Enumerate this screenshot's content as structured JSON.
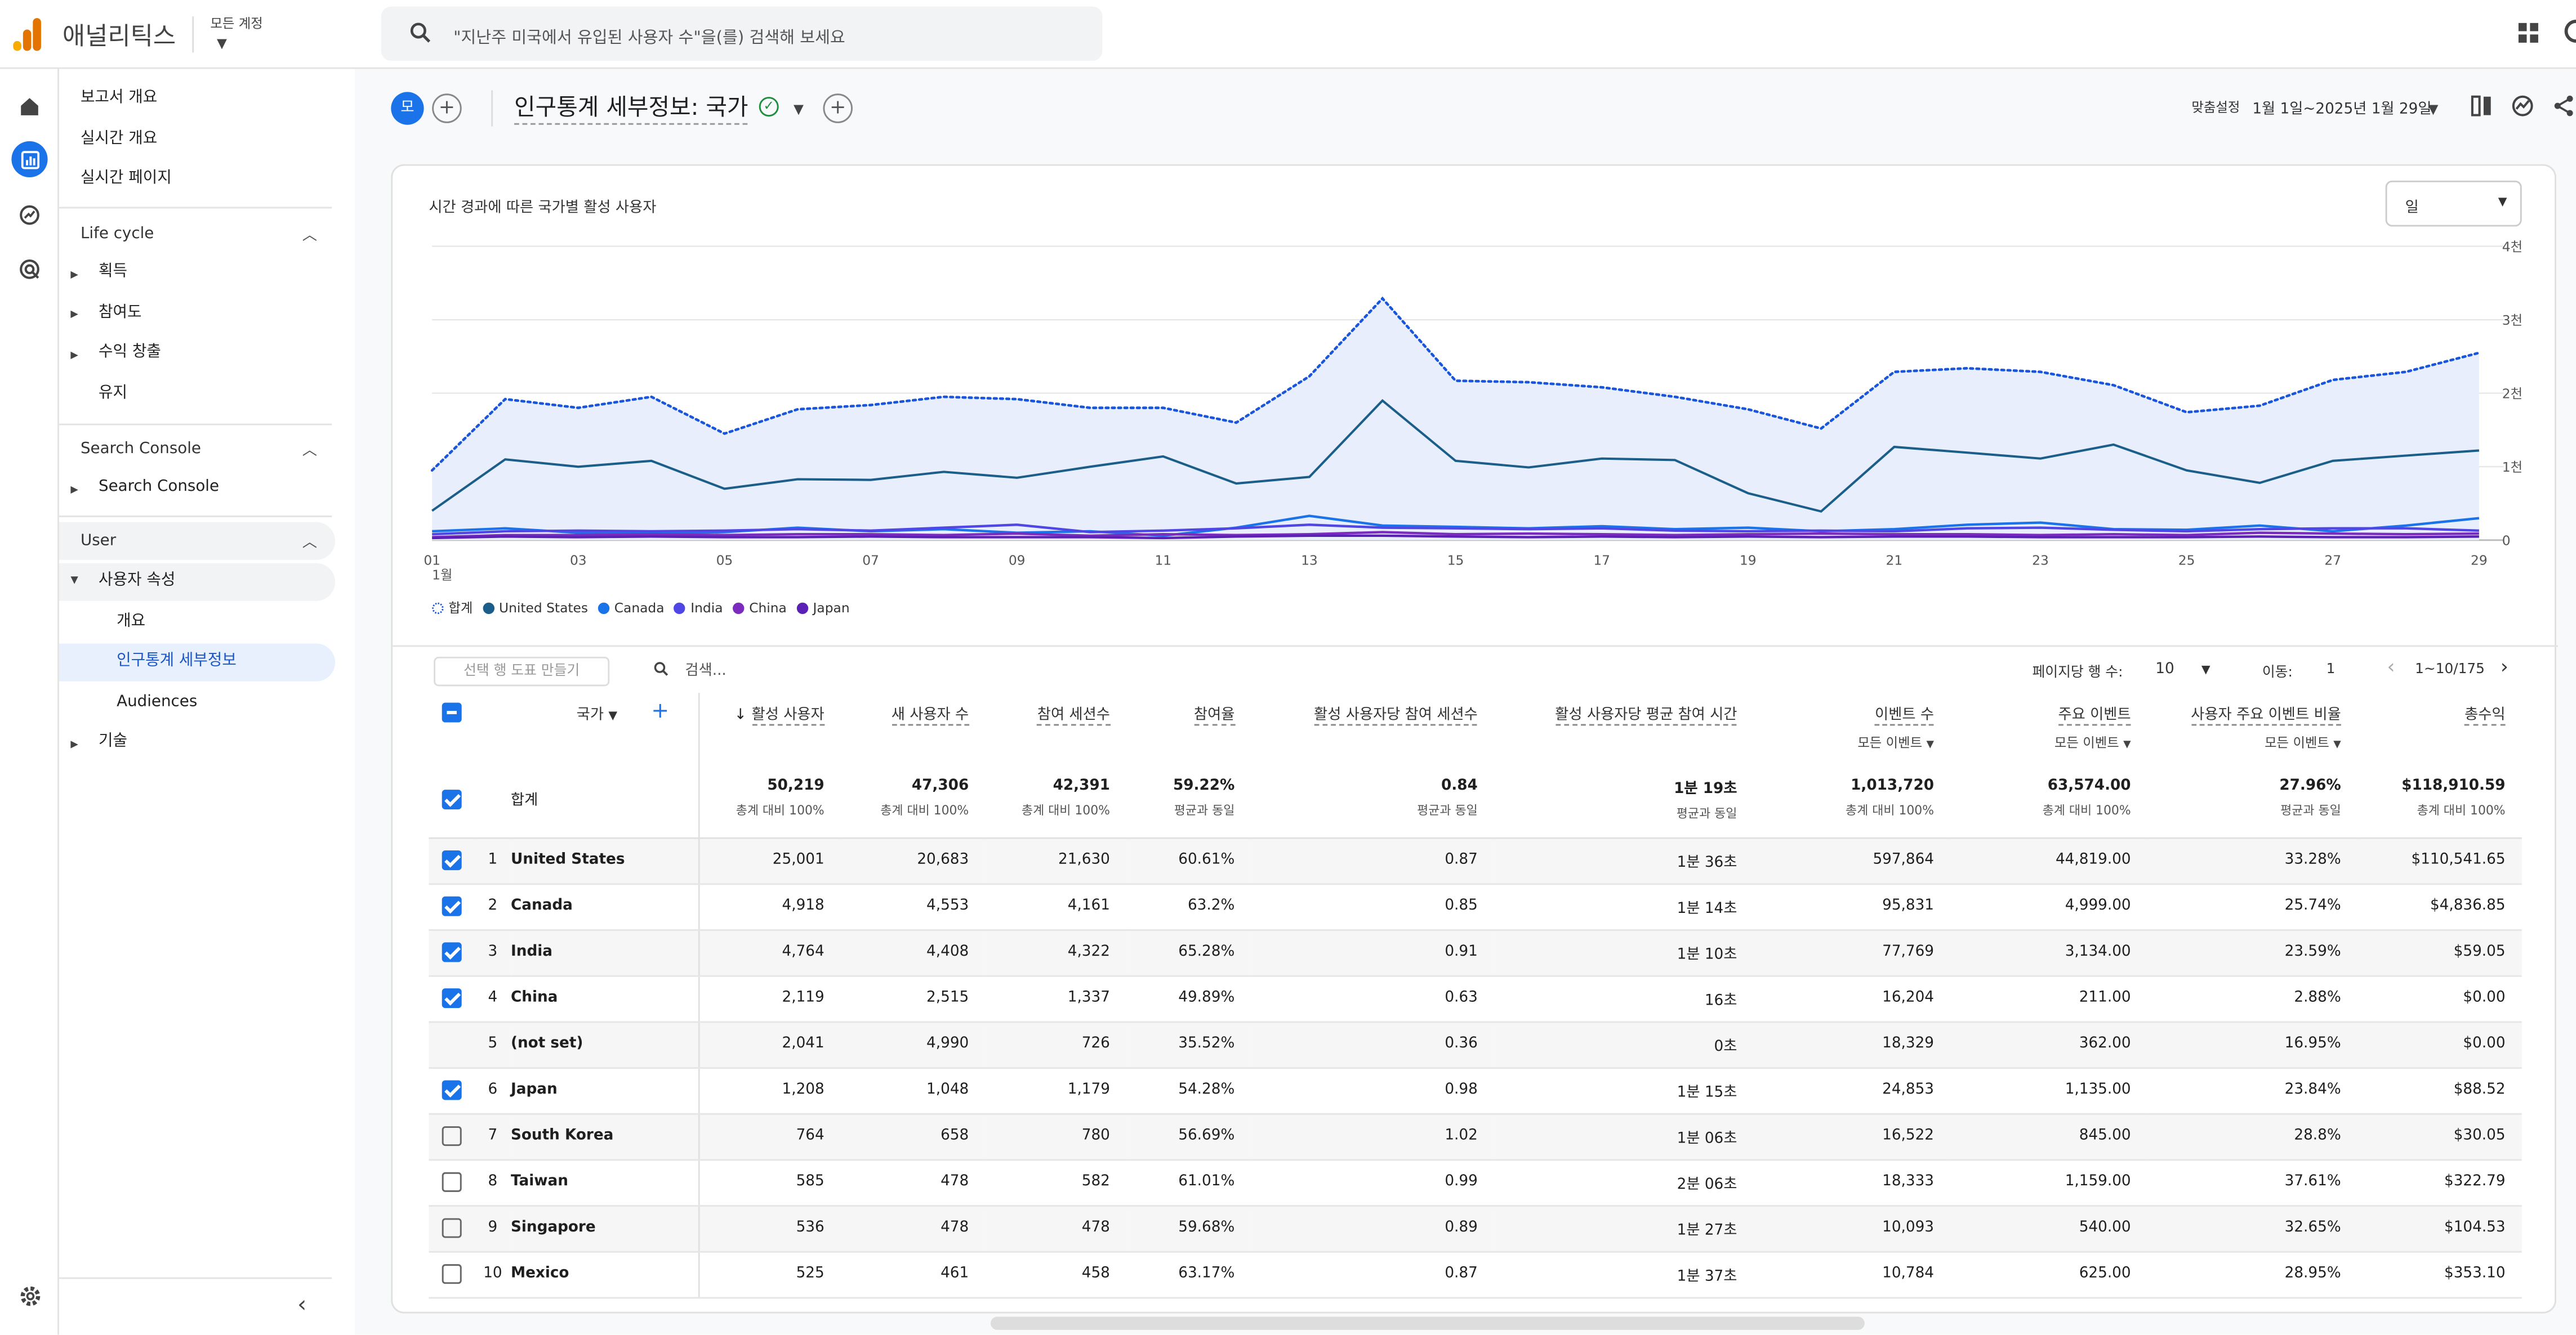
{
  "app": {
    "title": "애널리틱스",
    "account_label": "모든 계정",
    "search_placeholder": "\"지난주 미국에서 유입된 사용자 수\"을(를) 검색해 보세요"
  },
  "colors": {
    "accent": "#1a73e8",
    "logo": [
      "#f9ab00",
      "#e37400",
      "#e37400"
    ]
  },
  "rail": {
    "icons": [
      "home-icon",
      "reports-icon",
      "explore-icon",
      "advertising-icon",
      "settings-icon"
    ]
  },
  "sidebar": {
    "top_items": [
      "보고서 개요",
      "실시간 개요",
      "실시간 페이지"
    ],
    "lifecycle": {
      "title": "Life cycle",
      "items": [
        "획득",
        "참여도",
        "수익 창출",
        "유지"
      ]
    },
    "search_console": {
      "title": "Search Console",
      "items": [
        "Search Console"
      ]
    },
    "user": {
      "title": "User",
      "group": "사용자 속성",
      "sub": [
        "개요",
        "인구통계 세부정보",
        "Audiences"
      ],
      "tech": "기술"
    }
  },
  "toolbar": {
    "chip": "모",
    "page_title": "인구통계 세부정보: 국가",
    "custom_label": "맞춤설정",
    "date_range": "1월 1일~2025년 1월 29일"
  },
  "chart_card": {
    "title": "시간 경과에 따른 국가별 활성 사용자",
    "granularity": "일"
  },
  "chart_data": {
    "type": "line",
    "x": [
      "01",
      "02",
      "03",
      "04",
      "05",
      "06",
      "07",
      "08",
      "09",
      "10",
      "11",
      "12",
      "13",
      "14",
      "15",
      "16",
      "17",
      "18",
      "19",
      "20",
      "21",
      "22",
      "23",
      "24",
      "25",
      "26",
      "27",
      "28",
      "29"
    ],
    "x_tick_labels": [
      "01",
      "03",
      "05",
      "07",
      "09",
      "11",
      "13",
      "15",
      "17",
      "19",
      "21",
      "23",
      "25",
      "27",
      "29"
    ],
    "x_sub_label": "1월",
    "y_tick_labels": [
      "0",
      "1천",
      "2천",
      "3천",
      "4천"
    ],
    "ylim": [
      0,
      4000
    ],
    "grid": true,
    "legend_position": "bottom-left",
    "series": [
      {
        "name": "합계",
        "color": "#1a56db",
        "style": "dotted-area",
        "values": [
          950,
          1920,
          1800,
          1950,
          1450,
          1780,
          1840,
          1950,
          1920,
          1800,
          1800,
          1600,
          2230,
          3290,
          2170,
          2150,
          2080,
          1950,
          1780,
          1520,
          2290,
          2340,
          2290,
          2110,
          1740,
          1830,
          2180,
          2290,
          2550
        ]
      },
      {
        "name": "United States",
        "color": "#1b5e8a",
        "style": "solid",
        "values": [
          400,
          1100,
          1000,
          1080,
          700,
          830,
          820,
          930,
          850,
          1000,
          1140,
          770,
          860,
          1900,
          1080,
          990,
          1110,
          1090,
          640,
          390,
          1270,
          1190,
          1110,
          1300,
          950,
          780,
          1080,
          1150,
          1220
        ]
      },
      {
        "name": "Canada",
        "color": "#1a73e8",
        "style": "solid",
        "values": [
          120,
          160,
          100,
          90,
          110,
          170,
          120,
          150,
          100,
          120,
          60,
          170,
          330,
          200,
          180,
          160,
          190,
          150,
          170,
          120,
          150,
          210,
          240,
          150,
          140,
          200,
          120,
          200,
          300
        ]
      },
      {
        "name": "India",
        "color": "#4f46e5",
        "style": "solid",
        "values": [
          80,
          120,
          130,
          120,
          130,
          150,
          130,
          170,
          210,
          110,
          130,
          160,
          210,
          170,
          160,
          150,
          160,
          130,
          120,
          130,
          120,
          160,
          170,
          140,
          120,
          150,
          160,
          160,
          130
        ]
      },
      {
        "name": "China",
        "color": "#7b2cbf",
        "style": "solid",
        "values": [
          40,
          70,
          70,
          80,
          70,
          80,
          80,
          70,
          90,
          60,
          80,
          70,
          80,
          110,
          80,
          90,
          80,
          70,
          80,
          90,
          80,
          80,
          70,
          80,
          70,
          100,
          90,
          80,
          90
        ]
      },
      {
        "name": "Japan",
        "color": "#5b21b6",
        "style": "solid",
        "values": [
          30,
          50,
          40,
          50,
          40,
          40,
          50,
          40,
          40,
          40,
          30,
          50,
          60,
          60,
          50,
          40,
          50,
          40,
          50,
          40,
          50,
          50,
          40,
          40,
          40,
          50,
          40,
          40,
          50
        ]
      }
    ]
  },
  "table_tools": {
    "rows_btn": "선택 행 도표 만들기",
    "search_placeholder": "검색...",
    "rows_per_page_label": "페이지당 행 수:",
    "rows_per_page": "10",
    "goto_label": "이동:",
    "goto_value": "1",
    "range": "1~10/175"
  },
  "table": {
    "dim_header": "국가",
    "columns": [
      {
        "label": "활성 사용자",
        "sorted": true
      },
      {
        "label": "새 사용자 수"
      },
      {
        "label": "참여 세션수"
      },
      {
        "label": "참여율"
      },
      {
        "label": "활성 사용자당 참여 세션수"
      },
      {
        "label": "활성 사용자당 평균 참여 시간"
      },
      {
        "label": "이벤트 수",
        "sub": "모든 이벤트"
      },
      {
        "label": "주요 이벤트",
        "sub": "모든 이벤트"
      },
      {
        "label": "사용자 주요 이벤트 비율",
        "sub": "모든 이벤트"
      },
      {
        "label": "총수익"
      }
    ],
    "total": {
      "label": "합계",
      "values": [
        "50,219",
        "47,306",
        "42,391",
        "59.22%",
        "0.84",
        "1분 19초",
        "1,013,720",
        "63,574.00",
        "27.96%",
        "$118,910.59"
      ],
      "subs": [
        "총계 대비 100%",
        "총계 대비 100%",
        "총계 대비 100%",
        "평균과 동일",
        "평균과 동일",
        "평균과 동일",
        "총계 대비 100%",
        "총계 대비 100%",
        "평균과 동일",
        "총계 대비 100%"
      ]
    },
    "rows": [
      {
        "n": "1",
        "country": "United States",
        "checked": true,
        "values": [
          "25,001",
          "20,683",
          "21,630",
          "60.61%",
          "0.87",
          "1분 36초",
          "597,864",
          "44,819.00",
          "33.28%",
          "$110,541.65"
        ]
      },
      {
        "n": "2",
        "country": "Canada",
        "checked": true,
        "values": [
          "4,918",
          "4,553",
          "4,161",
          "63.2%",
          "0.85",
          "1분 14초",
          "95,831",
          "4,999.00",
          "25.74%",
          "$4,836.85"
        ]
      },
      {
        "n": "3",
        "country": "India",
        "checked": true,
        "values": [
          "4,764",
          "4,408",
          "4,322",
          "65.28%",
          "0.91",
          "1분 10초",
          "77,769",
          "3,134.00",
          "23.59%",
          "$59.05"
        ]
      },
      {
        "n": "4",
        "country": "China",
        "checked": true,
        "values": [
          "2,119",
          "2,515",
          "1,337",
          "49.89%",
          "0.63",
          "16초",
          "16,204",
          "211.00",
          "2.88%",
          "$0.00"
        ]
      },
      {
        "n": "5",
        "country": "(not set)",
        "checked": null,
        "values": [
          "2,041",
          "4,990",
          "726",
          "35.52%",
          "0.36",
          "0초",
          "18,329",
          "362.00",
          "16.95%",
          "$0.00"
        ]
      },
      {
        "n": "6",
        "country": "Japan",
        "checked": true,
        "values": [
          "1,208",
          "1,048",
          "1,179",
          "54.28%",
          "0.98",
          "1분 15초",
          "24,853",
          "1,135.00",
          "23.84%",
          "$88.52"
        ]
      },
      {
        "n": "7",
        "country": "South Korea",
        "checked": false,
        "values": [
          "764",
          "658",
          "780",
          "56.69%",
          "1.02",
          "1분 06초",
          "16,522",
          "845.00",
          "28.8%",
          "$30.05"
        ]
      },
      {
        "n": "8",
        "country": "Taiwan",
        "checked": false,
        "values": [
          "585",
          "478",
          "582",
          "61.01%",
          "0.99",
          "2분 06초",
          "18,333",
          "1,159.00",
          "37.61%",
          "$322.79"
        ]
      },
      {
        "n": "9",
        "country": "Singapore",
        "checked": false,
        "values": [
          "536",
          "478",
          "478",
          "59.68%",
          "0.89",
          "1분 27초",
          "10,093",
          "540.00",
          "32.65%",
          "$104.53"
        ]
      },
      {
        "n": "10",
        "country": "Mexico",
        "checked": false,
        "values": [
          "525",
          "461",
          "458",
          "63.17%",
          "0.87",
          "1분 37초",
          "10,784",
          "625.00",
          "28.95%",
          "$353.10"
        ]
      }
    ]
  }
}
